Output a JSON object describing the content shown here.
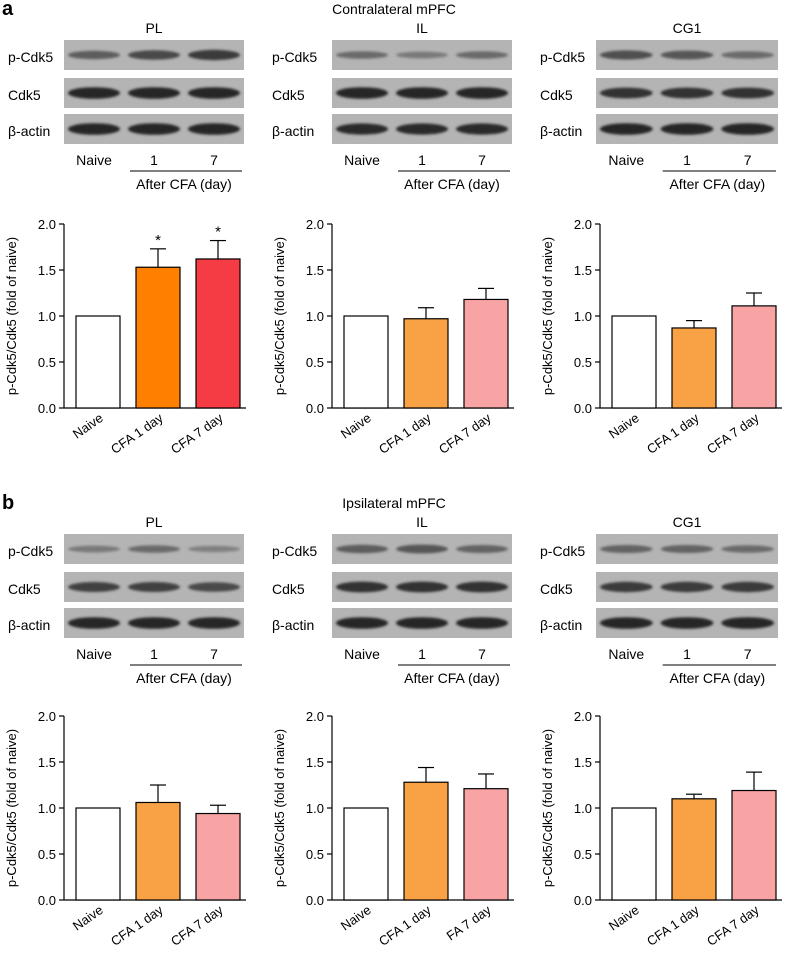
{
  "sections": [
    {
      "letter": "a",
      "title": "Contralateral mPFC",
      "panels": [
        {
          "region": "PL",
          "band_labels": [
            "p-Cdk5",
            "Cdk5",
            "β-actin"
          ],
          "lane_labels": [
            "Naive",
            "1",
            "7"
          ],
          "group_label": "After CFA (day)",
          "band_intensity": {
            "p-Cdk5": [
              0.55,
              0.7,
              0.8
            ],
            "Cdk5": [
              0.95,
              0.95,
              0.95
            ],
            "β-actin": [
              0.95,
              0.95,
              0.95
            ]
          }
        },
        {
          "region": "IL",
          "band_labels": [
            "p-Cdk5",
            "Cdk5",
            "β-actin"
          ],
          "lane_labels": [
            "Naive",
            "1",
            "7"
          ],
          "group_label": "After CFA (day)",
          "band_intensity": {
            "p-Cdk5": [
              0.45,
              0.35,
              0.45
            ],
            "Cdk5": [
              0.95,
              0.95,
              0.95
            ],
            "β-actin": [
              0.9,
              0.9,
              0.9
            ]
          }
        },
        {
          "region": "CG1",
          "band_labels": [
            "p-Cdk5",
            "Cdk5",
            "β-actin"
          ],
          "lane_labels": [
            "Naive",
            "1",
            "7"
          ],
          "group_label": "After CFA (day)",
          "band_intensity": {
            "p-Cdk5": [
              0.65,
              0.6,
              0.45
            ],
            "Cdk5": [
              0.85,
              0.85,
              0.85
            ],
            "β-actin": [
              0.95,
              0.95,
              0.95
            ]
          }
        }
      ]
    },
    {
      "letter": "b",
      "title": "Ipsilateral mPFC",
      "panels": [
        {
          "region": "PL",
          "band_labels": [
            "p-Cdk5",
            "Cdk5",
            "β-actin"
          ],
          "lane_labels": [
            "Naive",
            "1",
            "7"
          ],
          "group_label": "After CFA (day)",
          "band_intensity": {
            "p-Cdk5": [
              0.35,
              0.45,
              0.3
            ],
            "Cdk5": [
              0.75,
              0.75,
              0.7
            ],
            "β-actin": [
              0.95,
              0.95,
              0.95
            ]
          }
        },
        {
          "region": "IL",
          "band_labels": [
            "p-Cdk5",
            "Cdk5",
            "β-actin"
          ],
          "lane_labels": [
            "Naive",
            "1",
            "7"
          ],
          "group_label": "After CFA (day)",
          "band_intensity": {
            "p-Cdk5": [
              0.55,
              0.6,
              0.5
            ],
            "Cdk5": [
              0.85,
              0.85,
              0.85
            ],
            "β-actin": [
              0.95,
              0.95,
              0.95
            ]
          }
        },
        {
          "region": "CG1",
          "band_labels": [
            "p-Cdk5",
            "Cdk5",
            "β-actin"
          ],
          "lane_labels": [
            "Naive",
            "1",
            "7"
          ],
          "group_label": "After CFA (day)",
          "band_intensity": {
            "p-Cdk5": [
              0.5,
              0.5,
              0.45
            ],
            "Cdk5": [
              0.8,
              0.8,
              0.8
            ],
            "β-actin": [
              0.95,
              0.95,
              0.95
            ]
          }
        }
      ]
    }
  ],
  "chart_data": [
    {
      "type": "bar",
      "section": "a",
      "region": "PL",
      "categories": [
        "Naive",
        "CFA 1 day",
        "CFA 7 day"
      ],
      "values": [
        1.0,
        1.53,
        1.62
      ],
      "errors": [
        0,
        0.2,
        0.2
      ],
      "significance": [
        "",
        "*",
        "*"
      ],
      "colors": [
        "#ffffff",
        "#ff7f00",
        "#f53c44"
      ],
      "ylabel": "p-Cdk5/Cdk5 (fold of naive)",
      "ylim": [
        0,
        2.0
      ],
      "yticks": [
        "0.0",
        "0.5",
        "1.0",
        "1.5",
        "2.0"
      ]
    },
    {
      "type": "bar",
      "section": "a",
      "region": "IL",
      "categories": [
        "Naive",
        "CFA 1 day",
        "CFA 7 day"
      ],
      "values": [
        1.0,
        0.97,
        1.18
      ],
      "errors": [
        0,
        0.12,
        0.12
      ],
      "significance": [
        "",
        "",
        ""
      ],
      "colors": [
        "#ffffff",
        "#f8a245",
        "#f9a4a4"
      ],
      "ylabel": "p-Cdk5/Cdk5 (fold of naive)",
      "ylim": [
        0,
        2.0
      ],
      "yticks": [
        "0.0",
        "0.5",
        "1.0",
        "1.5",
        "2.0"
      ]
    },
    {
      "type": "bar",
      "section": "a",
      "region": "CG1",
      "categories": [
        "Naive",
        "CFA 1 day",
        "CFA 7 day"
      ],
      "values": [
        1.0,
        0.87,
        1.11
      ],
      "errors": [
        0,
        0.08,
        0.14
      ],
      "significance": [
        "",
        "",
        ""
      ],
      "colors": [
        "#ffffff",
        "#f8a245",
        "#f9a4a4"
      ],
      "ylabel": "p-Cdk5/Cdk5 (fold of naive)",
      "ylim": [
        0,
        2.0
      ],
      "yticks": [
        "0.0",
        "0.5",
        "1.0",
        "1.5",
        "2.0"
      ]
    },
    {
      "type": "bar",
      "section": "b",
      "region": "PL",
      "categories": [
        "Naive",
        "CFA 1 day",
        "CFA 7 day"
      ],
      "values": [
        1.0,
        1.06,
        0.94
      ],
      "errors": [
        0,
        0.19,
        0.09
      ],
      "significance": [
        "",
        "",
        ""
      ],
      "colors": [
        "#ffffff",
        "#f8a245",
        "#f9a4a4"
      ],
      "ylabel": "p-Cdk5/Cdk5 (fold of naive)",
      "ylim": [
        0,
        2.0
      ],
      "yticks": [
        "0.0",
        "0.5",
        "1.0",
        "1.5",
        "2.0"
      ]
    },
    {
      "type": "bar",
      "section": "b",
      "region": "IL",
      "categories": [
        "Naive",
        "CFA 1 day",
        "FA 7 day"
      ],
      "values": [
        1.0,
        1.28,
        1.21
      ],
      "errors": [
        0,
        0.16,
        0.16
      ],
      "significance": [
        "",
        "",
        ""
      ],
      "colors": [
        "#ffffff",
        "#f8a245",
        "#f9a4a4"
      ],
      "ylabel": "p-Cdk5/Cdk5 (fold of naive)",
      "ylim": [
        0,
        2.0
      ],
      "yticks": [
        "0.0",
        "0.5",
        "1.0",
        "1.5",
        "2.0"
      ]
    },
    {
      "type": "bar",
      "section": "b",
      "region": "CG1",
      "categories": [
        "Naive",
        "CFA 1 day",
        "CFA 7 day"
      ],
      "values": [
        1.0,
        1.1,
        1.19
      ],
      "errors": [
        0,
        0.05,
        0.2
      ],
      "significance": [
        "",
        "",
        ""
      ],
      "colors": [
        "#ffffff",
        "#f8a245",
        "#f9a4a4"
      ],
      "ylabel": "p-Cdk5/Cdk5 (fold of naive)",
      "ylim": [
        0,
        2.0
      ],
      "yticks": [
        "0.0",
        "0.5",
        "1.0",
        "1.5",
        "2.0"
      ]
    }
  ]
}
